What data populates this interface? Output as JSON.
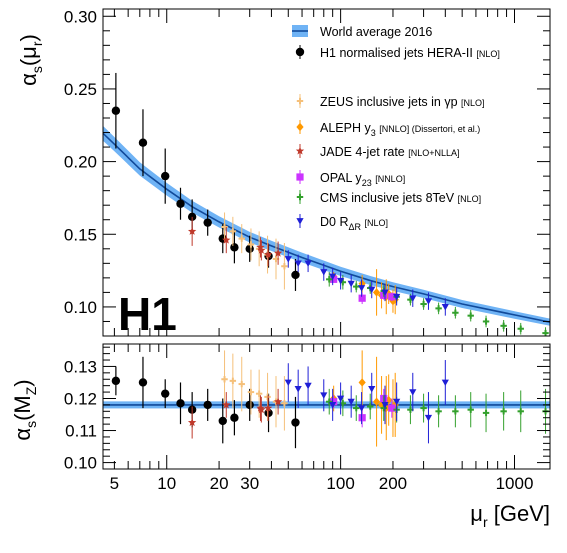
{
  "chart_data": [
    {
      "type": "scatter",
      "panel": "top",
      "logo": "H1",
      "xlabel": "μr [GeV]",
      "ylabel": "αs(μr)",
      "xscale": "log",
      "xlim": [
        4.3,
        1600
      ],
      "ylim": [
        0.08,
        0.305
      ],
      "x_ticks": [
        5,
        10,
        20,
        30,
        100,
        200,
        1000
      ],
      "x_tick_labels": [
        "5",
        "10",
        "20",
        "30",
        "100",
        "200",
        "1000"
      ],
      "y_ticks": [
        0.1,
        0.15,
        0.2,
        0.25,
        0.3
      ],
      "y_tick_labels": [
        "0.10",
        "0.15",
        "0.20",
        "0.25",
        "0.30"
      ],
      "legend_position": "top-right",
      "band": {
        "name": "World average 2016",
        "name_note": "",
        "color": "#1a6fd6",
        "x": [
          4.3,
          5,
          7,
          10,
          14,
          20,
          30,
          40,
          60,
          100,
          150,
          200,
          300,
          500,
          1000,
          1600
        ],
        "y": [
          0.2195,
          0.212,
          0.195,
          0.181,
          0.169,
          0.1585,
          0.148,
          0.142,
          0.134,
          0.1245,
          0.118,
          0.114,
          0.109,
          0.102,
          0.0945,
          0.0895
        ]
      },
      "series": [
        {
          "name": "H1 normalised jets HERA-II",
          "note": "[NLO]",
          "color": "#000000",
          "marker": "circle",
          "x": [
            5.1,
            7.3,
            9.8,
            12.0,
            14.0,
            17.2,
            21.0,
            24.5,
            30.0,
            38.5,
            55.0
          ],
          "y": [
            0.235,
            0.213,
            0.19,
            0.171,
            0.162,
            0.158,
            0.147,
            0.141,
            0.14,
            0.135,
            0.122
          ],
          "err": [
            0.026,
            0.023,
            0.019,
            0.011,
            0.012,
            0.009,
            0.01,
            0.011,
            0.009,
            0.008,
            0.011
          ]
        },
        {
          "name": "ZEUS inclusive jets in γp",
          "note": "[NLO]",
          "color": "#f5c07a",
          "marker": "cross",
          "x": [
            21.5,
            24.0,
            27.0,
            30.5,
            34.0,
            38.0,
            42.5,
            47.5
          ],
          "y": [
            0.155,
            0.152,
            0.147,
            0.143,
            0.14,
            0.136,
            0.133,
            0.128
          ],
          "err": [
            0.01,
            0.01,
            0.01,
            0.011,
            0.012,
            0.013,
            0.014,
            0.016
          ]
        },
        {
          "name": "ALEPH y3",
          "note": "[NNLO] (Dissertori, et al.)",
          "color": "#ff9900",
          "marker": "diamond",
          "x": [
            91.2,
            133,
            161,
            172,
            183,
            189,
            200,
            206
          ],
          "y": [
            0.121,
            0.116,
            0.11,
            0.108,
            0.107,
            0.109,
            0.104,
            0.105
          ],
          "err": [
            0.003,
            0.006,
            0.016,
            0.009,
            0.012,
            0.007,
            0.008,
            0.01
          ]
        },
        {
          "name": "JADE 4-jet rate",
          "note": "[NLO+NLLA]",
          "color": "#c0392b",
          "marker": "star",
          "x": [
            14.0,
            22.0,
            34.6,
            35.0,
            38.3,
            43.7
          ],
          "y": [
            0.152,
            0.146,
            0.141,
            0.139,
            0.136,
            0.137
          ],
          "err": [
            0.01,
            0.009,
            0.007,
            0.007,
            0.008,
            0.008
          ]
        },
        {
          "name": "OPAL y23",
          "note": "[NNLO]",
          "color": "#cc33ff",
          "marker": "square",
          "x": [
            91.2,
            133,
            177,
            197
          ],
          "y": [
            0.119,
            0.106,
            0.108,
            0.107
          ],
          "err": [
            0.002,
            0.004,
            0.003,
            0.003
          ]
        },
        {
          "name": "CMS inclusive jets 8TeV",
          "note": "[NLO]",
          "color": "#33a02c",
          "marker": "cross",
          "x": [
            86,
            103,
            123,
            148,
            177,
            210,
            252,
            300,
            366,
            457,
            560,
            686,
            866,
            1086,
            1508
          ],
          "y": [
            0.119,
            0.117,
            0.114,
            0.113,
            0.111,
            0.107,
            0.105,
            0.102,
            0.099,
            0.096,
            0.094,
            0.09,
            0.087,
            0.085,
            0.082
          ],
          "err": [
            0.005,
            0.005,
            0.004,
            0.004,
            0.004,
            0.004,
            0.004,
            0.004,
            0.004,
            0.004,
            0.004,
            0.004,
            0.004,
            0.004,
            0.004
          ]
        },
        {
          "name": "D0 RΔR",
          "note": "[NLO]",
          "color": "#1f1fd6",
          "marker": "triangle-down",
          "x": [
            50,
            57,
            65,
            80,
            90,
            100,
            115,
            132,
            151,
            180,
            210,
            260,
            320,
            400
          ],
          "y": [
            0.133,
            0.13,
            0.13,
            0.124,
            0.121,
            0.118,
            0.116,
            0.113,
            0.112,
            0.11,
            0.107,
            0.106,
            0.104,
            0.1
          ],
          "err": [
            0.006,
            0.006,
            0.006,
            0.006,
            0.006,
            0.006,
            0.006,
            0.006,
            0.006,
            0.006,
            0.006,
            0.006,
            0.006,
            0.006
          ]
        }
      ]
    },
    {
      "type": "scatter",
      "panel": "bottom",
      "xlabel": "μr [GeV]",
      "ylabel": "αs(MZ)",
      "xscale": "log",
      "xlim": [
        4.3,
        1600
      ],
      "ylim": [
        0.098,
        0.137
      ],
      "y_ticks": [
        0.1,
        0.11,
        0.12,
        0.13
      ],
      "y_tick_labels": [
        "0.10",
        "0.11",
        "0.12",
        "0.13"
      ],
      "band": {
        "name": "World average 2016",
        "color": "#1a6fd6",
        "value": 0.118,
        "err": 0.0011
      },
      "series": [
        {
          "name": "H1 normalised jets HERA-II",
          "color": "#000000",
          "marker": "circle",
          "x": [
            5.1,
            7.3,
            9.8,
            12.0,
            14.0,
            17.2,
            21.0,
            24.5,
            30.0,
            38.5,
            55.0
          ],
          "y": [
            0.1255,
            0.125,
            0.1215,
            0.1185,
            0.1165,
            0.118,
            0.113,
            0.114,
            0.118,
            0.1155,
            0.1125
          ],
          "err": [
            0.0045,
            0.008,
            0.0045,
            0.0065,
            0.0055,
            0.005,
            0.007,
            0.0055,
            0.005,
            0.006,
            0.008
          ]
        },
        {
          "name": "ZEUS inclusive jets in γp",
          "color": "#f5c07a",
          "marker": "cross",
          "x": [
            21.5,
            24.0,
            27.0,
            30.5,
            34.0,
            38.0,
            42.5,
            47.5
          ],
          "y": [
            0.126,
            0.1255,
            0.1245,
            0.122,
            0.1215,
            0.1205,
            0.119,
            0.1185
          ],
          "err": [
            0.009,
            0.0085,
            0.0085,
            0.007,
            0.0075,
            0.0075,
            0.008,
            0.0085
          ]
        },
        {
          "name": "ALEPH y3",
          "color": "#ff9900",
          "marker": "diamond",
          "x": [
            91.2,
            133,
            161,
            172,
            183,
            189,
            200,
            206
          ],
          "y": [
            0.12,
            0.125,
            0.119,
            0.118,
            0.117,
            0.1195,
            0.117,
            0.118
          ],
          "err": [
            0.004,
            0.01,
            0.014,
            0.009,
            0.01,
            0.008,
            0.009,
            0.01
          ]
        },
        {
          "name": "JADE 4-jet rate",
          "color": "#c0392b",
          "marker": "star",
          "x": [
            14.0,
            22.0,
            34.6,
            35.0,
            38.3,
            43.7
          ],
          "y": [
            0.1125,
            0.118,
            0.117,
            0.1165,
            0.117,
            0.119
          ],
          "err": [
            0.005,
            0.004,
            0.004,
            0.004,
            0.004,
            0.004
          ]
        },
        {
          "name": "OPAL y23",
          "color": "#cc33ff",
          "marker": "square",
          "x": [
            91.2,
            133,
            177,
            197
          ],
          "y": [
            0.119,
            0.114,
            0.12,
            0.117
          ],
          "err": [
            0.002,
            0.003,
            0.003,
            0.003
          ]
        },
        {
          "name": "CMS inclusive jets 8TeV",
          "color": "#33a02c",
          "marker": "cross",
          "x": [
            86,
            103,
            123,
            148,
            177,
            210,
            252,
            300,
            366,
            457,
            560,
            686,
            866,
            1086,
            1508
          ],
          "y": [
            0.119,
            0.1185,
            0.117,
            0.1175,
            0.117,
            0.1165,
            0.1165,
            0.117,
            0.116,
            0.116,
            0.1165,
            0.1155,
            0.116,
            0.116,
            0.116
          ],
          "err": [
            0.004,
            0.004,
            0.004,
            0.004,
            0.004,
            0.004,
            0.0045,
            0.0045,
            0.005,
            0.005,
            0.0055,
            0.006,
            0.006,
            0.0065,
            0.007
          ]
        },
        {
          "name": "D0 RΔR",
          "color": "#1f1fd6",
          "marker": "triangle-down",
          "x": [
            50,
            57,
            65,
            80,
            90,
            100,
            115,
            132,
            151,
            180,
            210,
            260,
            320,
            400
          ],
          "y": [
            0.125,
            0.123,
            0.124,
            0.121,
            0.118,
            0.12,
            0.119,
            0.117,
            0.123,
            0.118,
            0.119,
            0.122,
            0.114,
            0.125
          ],
          "err": [
            0.006,
            0.006,
            0.006,
            0.005,
            0.005,
            0.005,
            0.005,
            0.005,
            0.005,
            0.006,
            0.006,
            0.006,
            0.008,
            0.007
          ]
        }
      ]
    }
  ]
}
